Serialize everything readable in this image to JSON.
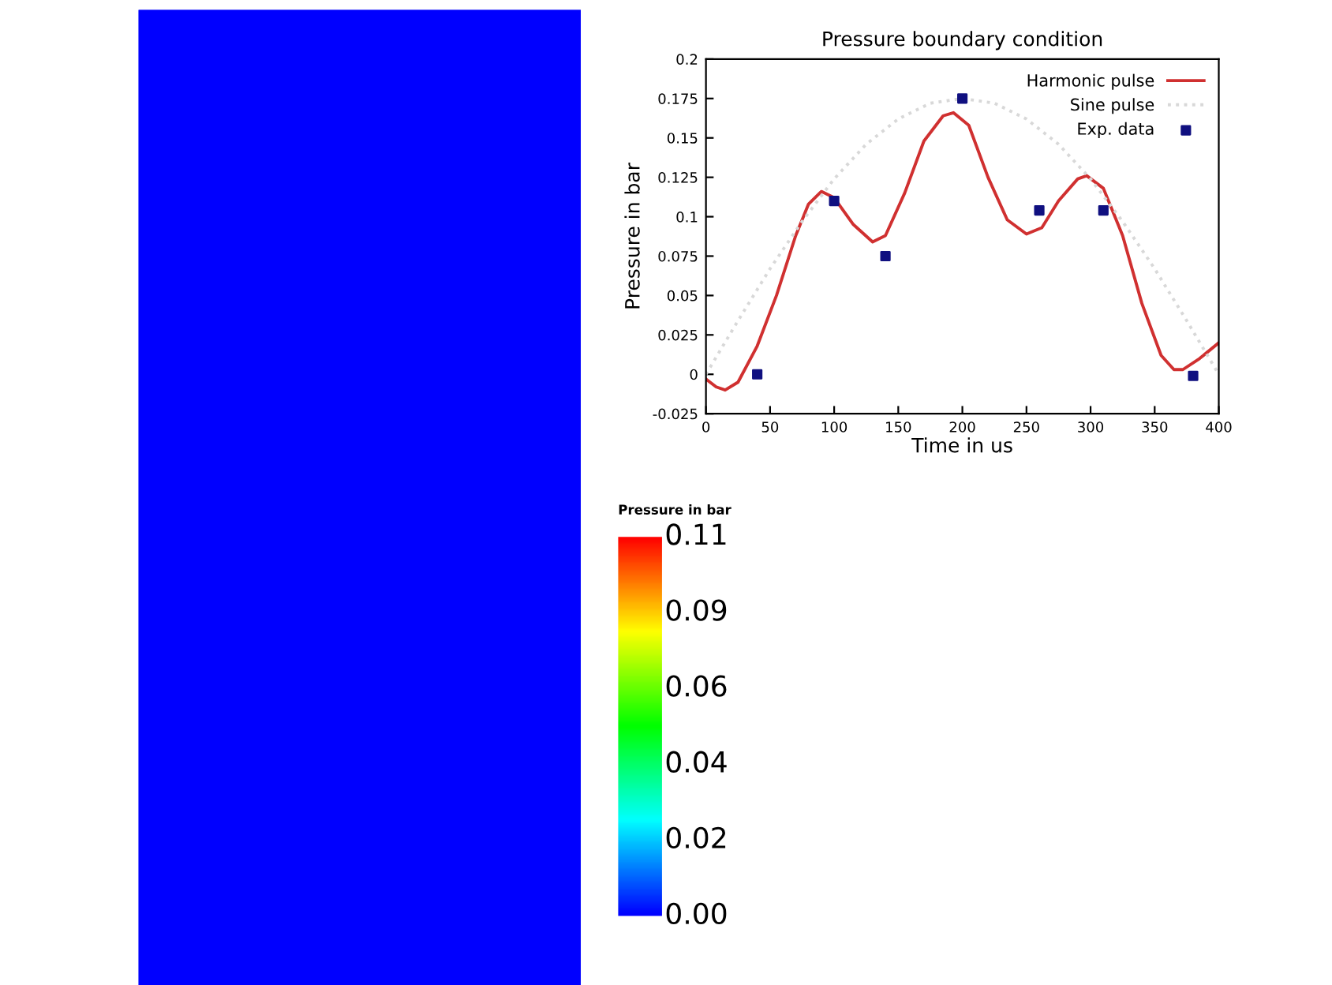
{
  "chart_data": [
    {
      "type": "line",
      "title": "Pressure boundary condition",
      "xlabel": "Time in us",
      "ylabel": "Pressure in bar",
      "xlim": [
        0,
        400
      ],
      "xticks": [
        0,
        50,
        100,
        150,
        200,
        250,
        300,
        350,
        400
      ],
      "ylim": [
        -0.025,
        0.2
      ],
      "yticks": [
        -0.025,
        0,
        0.025,
        0.05,
        0.075,
        0.1,
        0.125,
        0.15,
        0.175,
        0.2
      ],
      "grid": false,
      "legend": "top right",
      "series": [
        {
          "name": "Harmonic pulse",
          "color": "#d03030",
          "line_style": "solid",
          "x": [
            0,
            8,
            15,
            25,
            40,
            55,
            70,
            80,
            90,
            100,
            115,
            130,
            140,
            155,
            170,
            185,
            193,
            205,
            220,
            235,
            250,
            262,
            275,
            290,
            297,
            310,
            325,
            340,
            355,
            365,
            372,
            385,
            400
          ],
          "values": [
            -0.003,
            -0.008,
            -0.01,
            -0.005,
            0.018,
            0.05,
            0.088,
            0.108,
            0.116,
            0.112,
            0.095,
            0.084,
            0.088,
            0.115,
            0.148,
            0.164,
            0.166,
            0.158,
            0.125,
            0.098,
            0.089,
            0.093,
            0.11,
            0.124,
            0.126,
            0.118,
            0.088,
            0.045,
            0.012,
            0.003,
            0.003,
            0.01,
            0.02
          ]
        },
        {
          "name": "Sine pulse",
          "color": "#d8d8d8",
          "line_style": "dotted",
          "x": [
            0,
            25,
            50,
            75,
            100,
            125,
            150,
            175,
            200,
            225,
            250,
            275,
            300,
            325,
            350,
            375,
            400
          ],
          "values": [
            0,
            0.034,
            0.067,
            0.097,
            0.124,
            0.146,
            0.162,
            0.172,
            0.175,
            0.172,
            0.162,
            0.146,
            0.124,
            0.097,
            0.067,
            0.034,
            0
          ]
        },
        {
          "name": "Exp. data",
          "type": "scatter",
          "marker": "square",
          "color": "#101080",
          "x": [
            40,
            100,
            140,
            200,
            260,
            310,
            380
          ],
          "values": [
            0,
            0.11,
            0.075,
            0.175,
            0.104,
            0.104,
            -0.001
          ]
        }
      ]
    },
    {
      "type": "other",
      "title": "Pressure in bar",
      "annotations": [
        "0.11",
        "0.09",
        "0.06",
        "0.04",
        "0.02",
        "0.00"
      ]
    }
  ]
}
